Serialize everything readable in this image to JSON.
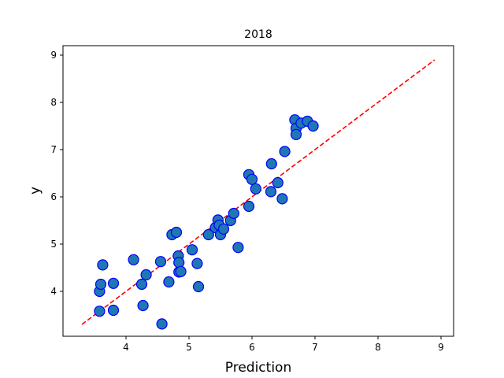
{
  "chart_data": {
    "type": "scatter",
    "title": "2018",
    "xlabel": "Prediction",
    "ylabel": "y",
    "xlim": [
      3.0,
      9.2
    ],
    "ylim": [
      3.05,
      9.2
    ],
    "xticks": [
      "4",
      "5",
      "6",
      "7",
      "8",
      "9"
    ],
    "yticks": [
      "4",
      "5",
      "6",
      "7",
      "8",
      "9"
    ],
    "grid": false,
    "colors": {
      "point_fill": "#1f77b4",
      "point_edge": "#0000ff",
      "reference_line": "#ff0000"
    },
    "reference_line": {
      "style": "dashed",
      "points": [
        [
          3.3,
          3.3
        ],
        [
          8.9,
          8.9
        ]
      ]
    },
    "series": [
      {
        "points": [
          [
            3.58,
            3.58
          ],
          [
            3.58,
            4.0
          ],
          [
            3.6,
            4.15
          ],
          [
            3.63,
            4.56
          ],
          [
            3.8,
            3.6
          ],
          [
            3.8,
            4.17
          ],
          [
            4.12,
            4.67
          ],
          [
            4.25,
            4.15
          ],
          [
            4.27,
            3.7
          ],
          [
            4.32,
            4.35
          ],
          [
            4.55,
            4.63
          ],
          [
            4.57,
            3.31
          ],
          [
            4.68,
            4.2
          ],
          [
            4.73,
            5.2
          ],
          [
            4.8,
            5.25
          ],
          [
            4.83,
            4.75
          ],
          [
            4.84,
            4.41
          ],
          [
            4.84,
            4.61
          ],
          [
            4.87,
            4.42
          ],
          [
            5.05,
            4.88
          ],
          [
            5.13,
            4.59
          ],
          [
            5.15,
            4.1
          ],
          [
            5.31,
            5.2
          ],
          [
            5.42,
            5.35
          ],
          [
            5.46,
            5.51
          ],
          [
            5.48,
            5.4
          ],
          [
            5.5,
            5.2
          ],
          [
            5.55,
            5.32
          ],
          [
            5.66,
            5.5
          ],
          [
            5.71,
            5.65
          ],
          [
            5.78,
            4.93
          ],
          [
            5.95,
            5.8
          ],
          [
            5.95,
            6.47
          ],
          [
            6.0,
            6.37
          ],
          [
            6.06,
            6.17
          ],
          [
            6.3,
            6.11
          ],
          [
            6.31,
            6.7
          ],
          [
            6.41,
            6.3
          ],
          [
            6.48,
            5.96
          ],
          [
            6.52,
            6.96
          ],
          [
            6.68,
            7.63
          ],
          [
            6.7,
            7.45
          ],
          [
            6.7,
            7.32
          ],
          [
            6.78,
            7.56
          ],
          [
            6.88,
            7.6
          ],
          [
            6.97,
            7.5
          ]
        ]
      }
    ]
  }
}
